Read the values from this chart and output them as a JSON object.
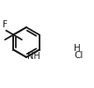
{
  "bg_color": "#ffffff",
  "line_color": "#1a1a1a",
  "line_width": 1.3,
  "font_size_label": 7.0,
  "font_size_hcl_h": 7.5,
  "font_size_hcl_cl": 7.5,
  "F_label": "F",
  "NH_label": "NH",
  "HCl_H": "H",
  "HCl_Cl": "Cl",
  "figsize": [
    1.07,
    1.0
  ],
  "dpi": 100
}
